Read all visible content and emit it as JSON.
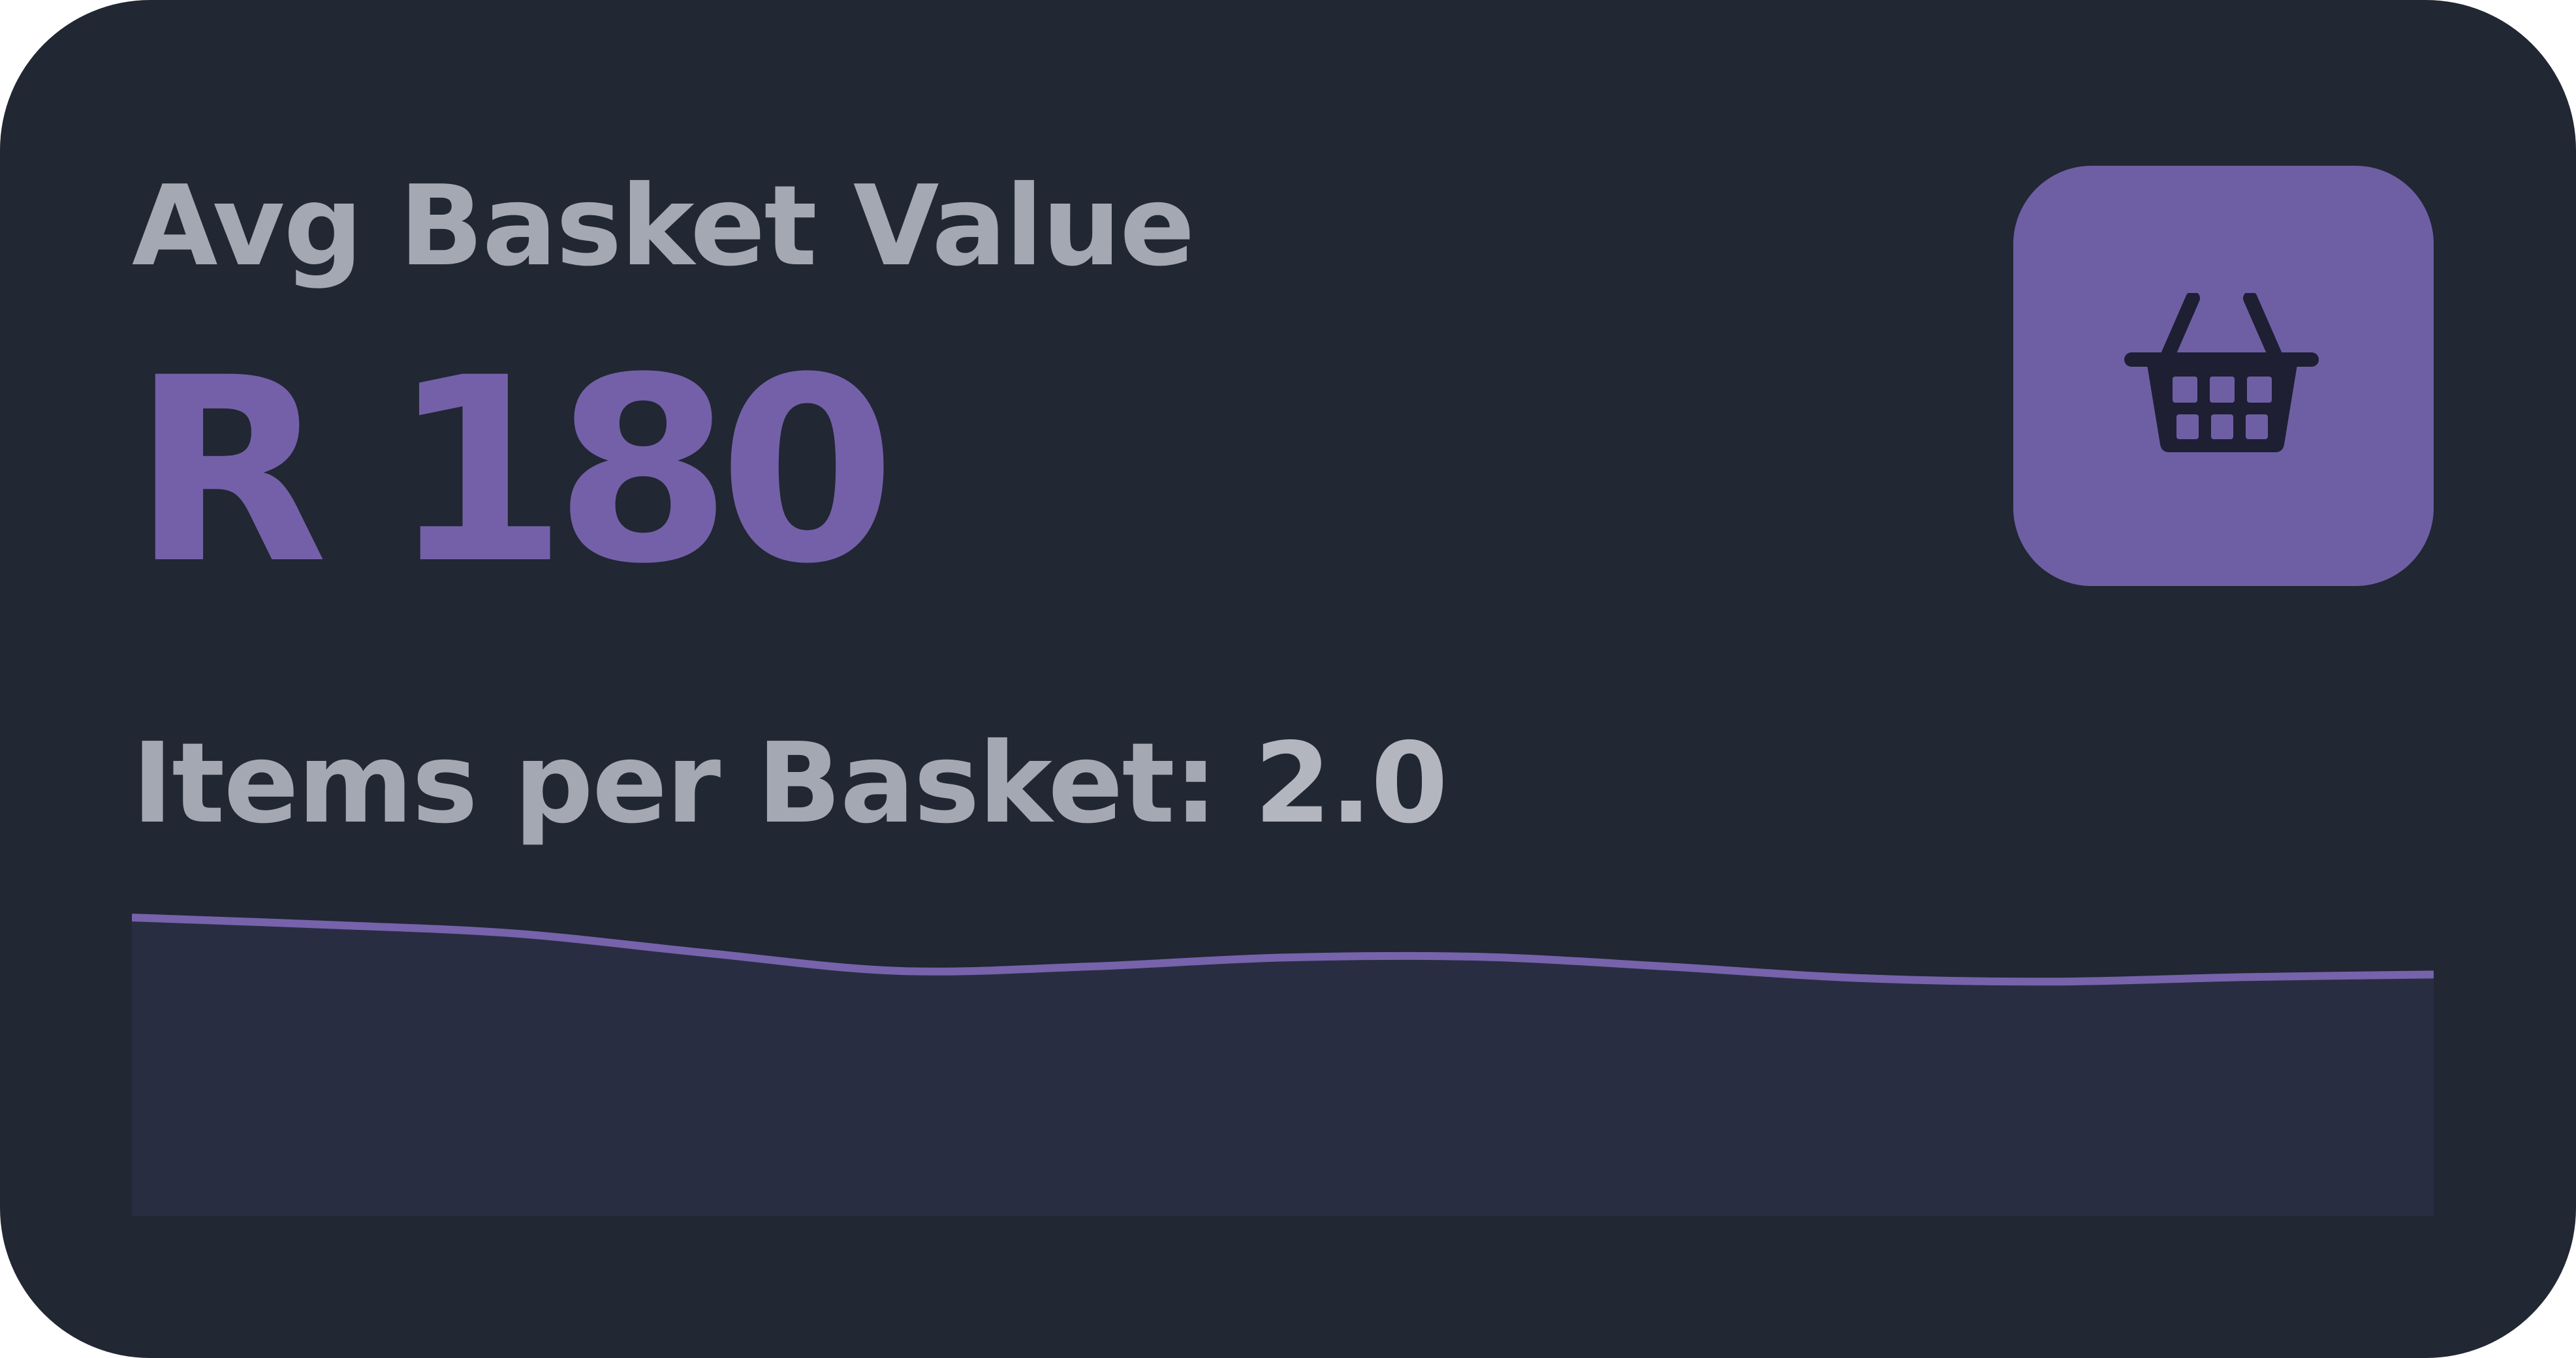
{
  "card": {
    "title": "Avg Basket Value",
    "value": "R 180",
    "icon": "basket-icon",
    "items_label": "Items per Basket: ",
    "items_value": "2.0"
  },
  "colors": {
    "background": "#212733",
    "accent": "#7460a8",
    "icon_box": "#6e5fa5",
    "icon_glyph": "#1e1f33",
    "muted_text": "#a4a8b2",
    "sparkline_fill": "#292d41",
    "sparkline_line": "#7663ab"
  },
  "chart_data": {
    "type": "area",
    "x": [
      0,
      1,
      2,
      3,
      4,
      5,
      6,
      7,
      8,
      9,
      10,
      11,
      12
    ],
    "values": [
      1.0,
      0.92,
      0.82,
      0.6,
      0.4,
      0.45,
      0.55,
      0.56,
      0.45,
      0.32,
      0.28,
      0.33,
      0.36
    ],
    "ylim": [
      -2.4,
      1.0
    ],
    "grid": false,
    "legend": "none"
  }
}
